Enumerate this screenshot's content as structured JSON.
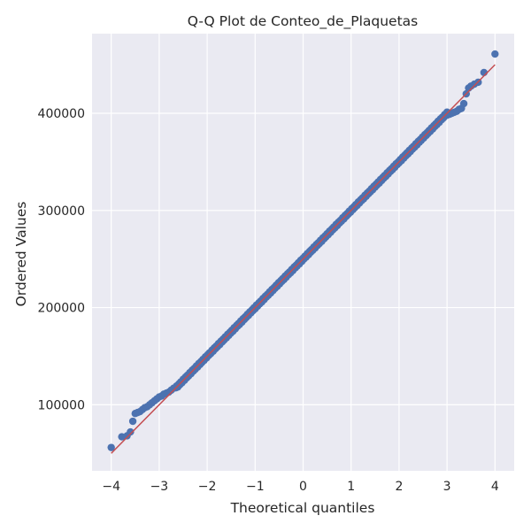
{
  "chart_data": {
    "type": "scatter",
    "title": "Q-Q Plot de Conteo_de_Plaquetas",
    "xlabel": "Theoretical quantiles",
    "ylabel": "Ordered Values",
    "xlim": [
      -4.4,
      4.4
    ],
    "ylim": [
      32000,
      482000
    ],
    "x_ticks": [
      -4,
      -3,
      -2,
      -1,
      0,
      1,
      2,
      3,
      4
    ],
    "x_tick_labels": [
      "−4",
      "−3",
      "−2",
      "−1",
      "0",
      "1",
      "2",
      "3",
      "4"
    ],
    "y_ticks": [
      100000,
      200000,
      300000,
      400000
    ],
    "y_tick_labels": [
      "100000",
      "200000",
      "300000",
      "400000"
    ],
    "grid": true,
    "background": "#eaeaf2",
    "grid_color": "#ffffff",
    "point_color": "#4c72b0",
    "line_color": "#c44e52",
    "fit_line": {
      "slope": 50000,
      "intercept": 250000,
      "x_range": [
        -4.0,
        4.0
      ]
    },
    "series": [
      {
        "points": [
          [
            -4.0,
            56000
          ],
          [
            -3.78,
            67000
          ],
          [
            -3.67,
            68000
          ],
          [
            -3.6,
            72000
          ],
          [
            -3.55,
            83000
          ],
          [
            -3.5,
            91000
          ],
          [
            -3.45,
            92000
          ],
          [
            -3.4,
            93000
          ],
          [
            -3.35,
            95000
          ],
          [
            -3.3,
            97000
          ],
          [
            -3.25,
            98000
          ],
          [
            -3.2,
            100000
          ],
          [
            -3.15,
            102000
          ],
          [
            -3.1,
            104000
          ],
          [
            -3.05,
            106000
          ],
          [
            -3.0,
            108000
          ],
          [
            -2.95,
            109000
          ],
          [
            -2.9,
            111000
          ],
          [
            -2.85,
            112000
          ],
          [
            -2.8,
            113000
          ],
          [
            -2.75,
            115000
          ],
          [
            -2.7,
            117000
          ],
          [
            -2.65,
            118000
          ],
          [
            3.0,
            398000
          ],
          [
            3.05,
            399000
          ],
          [
            3.1,
            400000
          ],
          [
            3.15,
            401000
          ],
          [
            3.2,
            402000
          ],
          [
            3.25,
            404000
          ],
          [
            3.3,
            405000
          ],
          [
            3.35,
            410000
          ],
          [
            3.4,
            420000
          ],
          [
            3.45,
            426000
          ],
          [
            3.5,
            428000
          ],
          [
            3.57,
            430000
          ],
          [
            3.65,
            432000
          ],
          [
            3.77,
            442000
          ],
          [
            4.0,
            461000
          ]
        ],
        "dense_band": {
          "x_range": [
            -2.65,
            3.0
          ],
          "step": 0.0125,
          "slope": 50000,
          "intercept": 250000,
          "wobble": 1200
        }
      }
    ]
  }
}
